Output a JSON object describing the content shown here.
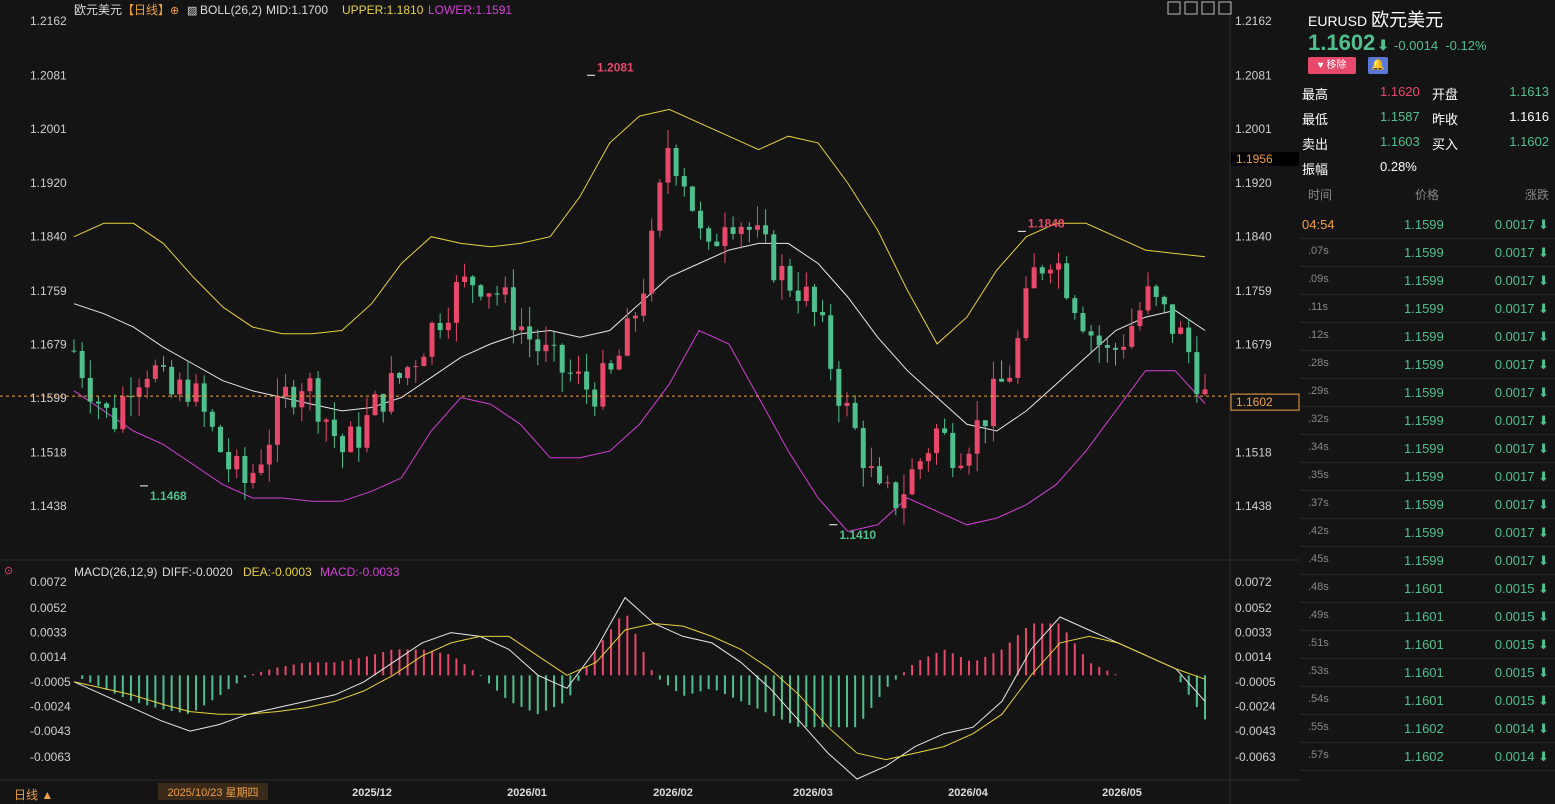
{
  "header": {
    "symbol_name": "欧元美元",
    "period": "【日线】",
    "boll_label": "BOLL(26,2)",
    "mid_label": "MID:1.1700",
    "upper_label": "UPPER:1.1810",
    "lower_label": "LOWER:1.1591",
    "macd_label": "MACD(26,12,9)",
    "diff_label": "DIFF:-0.0020",
    "dea_label": "DEA:-0.0003",
    "macd_value_label": "MACD:-0.0033"
  },
  "colors": {
    "up": "#e8486a",
    "down": "#4fc08d",
    "upper": "#e6d23a",
    "mid": "#e8e8e8",
    "lower": "#d33fd6",
    "dea": "#e6d23a",
    "macd_purple": "#d33fd6",
    "accent": "#f0a040"
  },
  "chart_data": {
    "type": "candlestick",
    "price_axis": [
      "1.2162",
      "1.2081",
      "1.2001",
      "1.1920",
      "1.1840",
      "1.1759",
      "1.1679",
      "1.1599",
      "1.1518",
      "1.1438"
    ],
    "macd_axis": [
      "0.0072",
      "0.0052",
      "0.0033",
      "0.0014",
      "-0.0005",
      "-0.0024",
      "-0.0043",
      "-0.0063"
    ],
    "x_labels": [
      "2025/10/23 星期四",
      "2025/12",
      "2026/01",
      "2026/02",
      "2026/03",
      "2026/04",
      "2026/05"
    ],
    "ylim": [
      1.14,
      1.2162
    ],
    "markers": [
      {
        "label": "1.2081",
        "value": 1.2081,
        "date": "2026/01/27"
      },
      {
        "label": "1.1468",
        "value": 1.1468,
        "date": "2025/11/05"
      },
      {
        "label": "1.1410",
        "value": 1.141,
        "date": "2026/03/13"
      },
      {
        "label": "1.1848",
        "value": 1.1848,
        "date": "2026/04/17"
      }
    ],
    "current_price_label": "1.1602",
    "current_price": 1.1602,
    "marked_price_label": "1.1956",
    "anchors": [
      1.167,
      1.161,
      1.156,
      1.163,
      1.165,
      1.16,
      1.162,
      1.156,
      1.15,
      1.147,
      1.153,
      1.16,
      1.163,
      1.158,
      1.152,
      1.155,
      1.16,
      1.163,
      1.167,
      1.172,
      1.176,
      1.178,
      1.176,
      1.172,
      1.168,
      1.165,
      1.163,
      1.161,
      1.163,
      1.17,
      1.18,
      1.198,
      1.192,
      1.18,
      1.188,
      1.186,
      1.182,
      1.178,
      1.176,
      1.17,
      1.16,
      1.153,
      1.145,
      1.145,
      1.15,
      1.155,
      1.152,
      1.155,
      1.16,
      1.165,
      1.178,
      1.182,
      1.176,
      1.17,
      1.166,
      1.17,
      1.175,
      1.172,
      1.168,
      1.16
    ],
    "series": [
      {
        "name": "UPPER",
        "values": [
          1.184,
          1.186,
          1.186,
          1.183,
          1.178,
          1.1735,
          1.1705,
          1.1695,
          1.1695,
          1.17,
          1.174,
          1.18,
          1.184,
          1.183,
          1.1825,
          1.183,
          1.184,
          1.19,
          1.198,
          1.202,
          1.203,
          1.201,
          1.199,
          1.197,
          1.199,
          1.198,
          1.192,
          1.185,
          1.176,
          1.168,
          1.172,
          1.179,
          1.184,
          1.186,
          1.186,
          1.184,
          1.182,
          1.1815,
          1.181
        ]
      },
      {
        "name": "MID",
        "values": [
          1.174,
          1.1725,
          1.1705,
          1.1675,
          1.165,
          1.1625,
          1.161,
          1.16,
          1.159,
          1.158,
          1.1585,
          1.16,
          1.163,
          1.166,
          1.168,
          1.1695,
          1.17,
          1.169,
          1.17,
          1.174,
          1.178,
          1.18,
          1.182,
          1.183,
          1.183,
          1.18,
          1.175,
          1.169,
          1.164,
          1.16,
          1.156,
          1.155,
          1.158,
          1.162,
          1.166,
          1.17,
          1.172,
          1.173,
          1.17
        ]
      },
      {
        "name": "LOWER",
        "values": [
          1.161,
          1.158,
          1.155,
          1.153,
          1.15,
          1.147,
          1.145,
          1.145,
          1.1445,
          1.1445,
          1.146,
          1.148,
          1.155,
          1.16,
          1.159,
          1.156,
          1.151,
          1.151,
          1.152,
          1.156,
          1.162,
          1.17,
          1.168,
          1.16,
          1.152,
          1.145,
          1.14,
          1.141,
          1.145,
          1.143,
          1.141,
          1.142,
          1.144,
          1.147,
          1.152,
          1.158,
          1.164,
          1.164,
          1.1591
        ]
      },
      {
        "name": "DIFF",
        "values": [
          -0.0005,
          -0.0015,
          -0.0025,
          -0.0035,
          -0.0043,
          -0.0038,
          -0.003,
          -0.0025,
          -0.002,
          -0.0015,
          -0.0005,
          0.001,
          0.0025,
          0.0033,
          0.003,
          0.002,
          0.0,
          -0.001,
          0.002,
          0.006,
          0.004,
          0.003,
          0.0025,
          0.001,
          -0.001,
          -0.0035,
          -0.006,
          -0.008,
          -0.007,
          -0.0055,
          -0.0045,
          -0.004,
          -0.002,
          0.002,
          0.0045,
          0.0035,
          0.0025,
          0.0015,
          0.0005,
          -0.002
        ]
      },
      {
        "name": "DEA",
        "values": [
          -0.0005,
          -0.001,
          -0.0015,
          -0.0022,
          -0.0028,
          -0.003,
          -0.003,
          -0.0028,
          -0.0025,
          -0.002,
          -0.0012,
          0.0,
          0.0015,
          0.0025,
          0.003,
          0.003,
          0.0015,
          0.0,
          0.001,
          0.0035,
          0.004,
          0.0038,
          0.003,
          0.002,
          0.0005,
          -0.0015,
          -0.004,
          -0.006,
          -0.0065,
          -0.006,
          -0.0055,
          -0.0045,
          -0.003,
          0.0,
          0.0025,
          0.003,
          0.0025,
          0.0015,
          0.0005,
          -0.0003
        ]
      }
    ]
  },
  "panel": {
    "symbol": "EURUSD",
    "name": "欧元美元",
    "price": "1.1602",
    "arrow": "⬇",
    "change": "-0.0014",
    "change_pct": "-0.12%",
    "fav_button": "♥ 移除",
    "bell": "🔔",
    "stats": [
      {
        "l1": "最高",
        "v1": "1.1620",
        "c1": "#e8486a",
        "l2": "开盘",
        "v2": "1.1613",
        "c2": "#4fc08d"
      },
      {
        "l1": "最低",
        "v1": "1.1587",
        "c1": "#4fc08d",
        "l2": "昨收",
        "v2": "1.1616",
        "c2": "#ffffff"
      },
      {
        "l1": "卖出",
        "v1": "1.1603",
        "c1": "#4fc08d",
        "l2": "买入",
        "v2": "1.1602",
        "c2": "#4fc08d"
      },
      {
        "l1": "振幅",
        "v1": "0.28%",
        "c1": "#ffffff",
        "l2": "",
        "v2": "",
        "c2": "#ffffff"
      }
    ],
    "quote_headers": {
      "time": "时间",
      "price": "价格",
      "change": "涨跌"
    },
    "quotes": [
      {
        "t": "04:54",
        "p": "1.1599",
        "c": "0.0017"
      },
      {
        "t": ".07s",
        "p": "1.1599",
        "c": "0.0017"
      },
      {
        "t": ".09s",
        "p": "1.1599",
        "c": "0.0017"
      },
      {
        "t": ".11s",
        "p": "1.1599",
        "c": "0.0017"
      },
      {
        "t": ".12s",
        "p": "1.1599",
        "c": "0.0017"
      },
      {
        "t": ".28s",
        "p": "1.1599",
        "c": "0.0017"
      },
      {
        "t": ".29s",
        "p": "1.1599",
        "c": "0.0017"
      },
      {
        "t": ".32s",
        "p": "1.1599",
        "c": "0.0017"
      },
      {
        "t": ".34s",
        "p": "1.1599",
        "c": "0.0017"
      },
      {
        "t": ".35s",
        "p": "1.1599",
        "c": "0.0017"
      },
      {
        "t": ".37s",
        "p": "1.1599",
        "c": "0.0017"
      },
      {
        "t": ".42s",
        "p": "1.1599",
        "c": "0.0017"
      },
      {
        "t": ".45s",
        "p": "1.1599",
        "c": "0.0017"
      },
      {
        "t": ".48s",
        "p": "1.1601",
        "c": "0.0015"
      },
      {
        "t": ".49s",
        "p": "1.1601",
        "c": "0.0015"
      },
      {
        "t": ".51s",
        "p": "1.1601",
        "c": "0.0015"
      },
      {
        "t": ".53s",
        "p": "1.1601",
        "c": "0.0015"
      },
      {
        "t": ".54s",
        "p": "1.1601",
        "c": "0.0015"
      },
      {
        "t": ".55s",
        "p": "1.1602",
        "c": "0.0014"
      },
      {
        "t": ".57s",
        "p": "1.1602",
        "c": "0.0014"
      }
    ]
  },
  "bottom_tab": "日线 ▲"
}
